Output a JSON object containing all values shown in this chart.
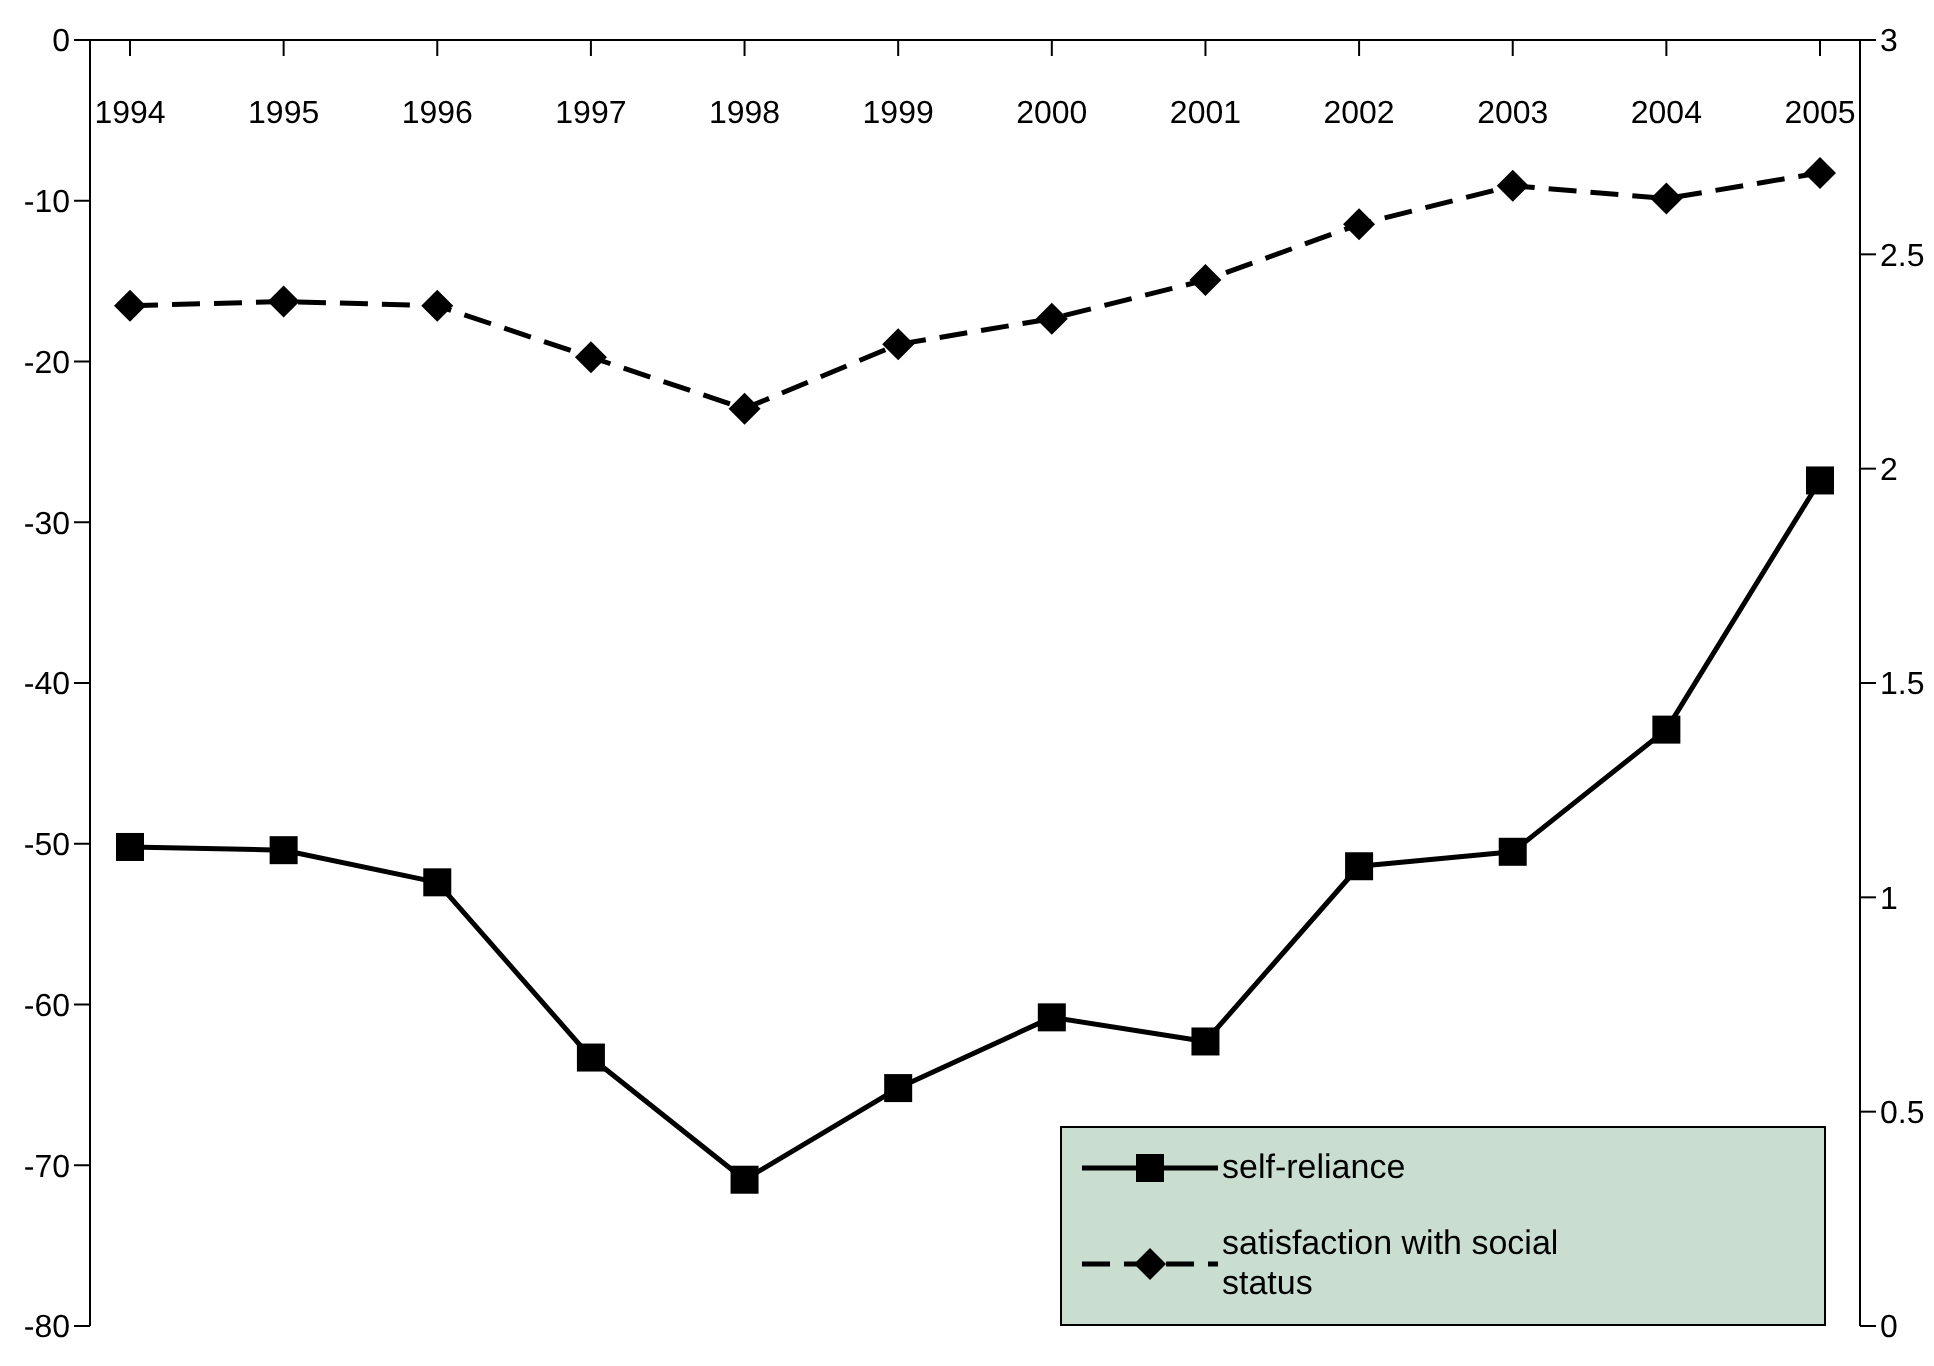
{
  "chart_data": {
    "type": "line",
    "categories": [
      "1994",
      "1995",
      "1996",
      "1997",
      "1998",
      "1999",
      "2000",
      "2001",
      "2002",
      "2003",
      "2004",
      "2005"
    ],
    "series": [
      {
        "name": "self-reliance",
        "color": "#000000",
        "marker": "square",
        "line_style": "solid",
        "values": [
          -50.2,
          -50.4,
          -52.4,
          -63.3,
          -70.9,
          -65.2,
          -60.8,
          -62.3,
          -51.4,
          -50.5,
          -42.9,
          -27.4
        ]
      },
      {
        "name": "satisfaction with social status",
        "color": "#000000",
        "marker": "diamond",
        "line_style": "dashed",
        "axis": "y2",
        "values": [
          2.38,
          2.39,
          2.38,
          2.26,
          2.14,
          2.29,
          2.35,
          2.44,
          2.57,
          2.66,
          2.63,
          2.69
        ]
      }
    ],
    "ylim": [
      -80,
      0
    ],
    "yticks": [
      -80,
      -70,
      -60,
      -50,
      -40,
      -30,
      -20,
      -10,
      0
    ],
    "y2lim": [
      0,
      3
    ],
    "y2ticks": [
      0,
      0.5,
      1,
      1.5,
      2,
      2.5,
      3
    ],
    "legend": "bottom right"
  }
}
